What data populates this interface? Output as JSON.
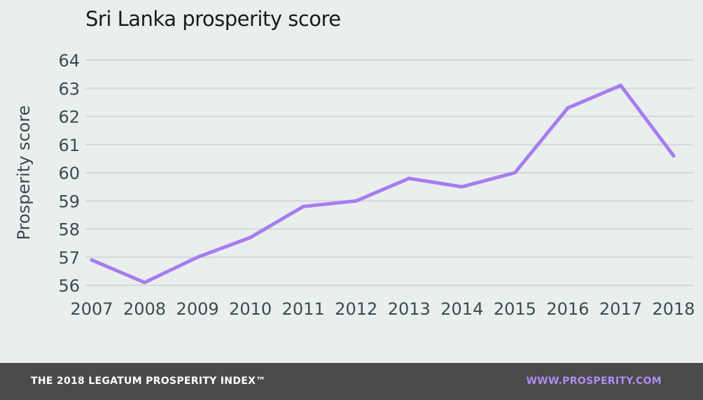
{
  "colors": {
    "background": "#e9efec",
    "line": "#a77cf2",
    "grid": "#d2d9d6",
    "footer_bg": "#4a4a4a",
    "footer_link": "#b08cf0"
  },
  "footer": {
    "brand": "THE 2018 LEGATUM PROSPERITY INDEX™",
    "url": "WWW.PROSPERITY.COM"
  },
  "chart_data": {
    "type": "line",
    "title": "Sri Lanka prosperity score",
    "xlabel": "",
    "ylabel": "Prosperity score",
    "x": [
      "2007",
      "2008",
      "2009",
      "2010",
      "2011",
      "2012",
      "2013",
      "2014",
      "2015",
      "2016",
      "2017",
      "2018"
    ],
    "series": [
      {
        "values": [
          56.9,
          56.1,
          57.0,
          57.7,
          58.8,
          59.0,
          59.8,
          59.5,
          60.0,
          62.3,
          63.1,
          60.6
        ]
      }
    ],
    "ylim": [
      56,
      64
    ],
    "yticks": [
      56,
      57,
      58,
      59,
      60,
      61,
      62,
      63,
      64
    ],
    "grid": true,
    "legend": "none"
  }
}
